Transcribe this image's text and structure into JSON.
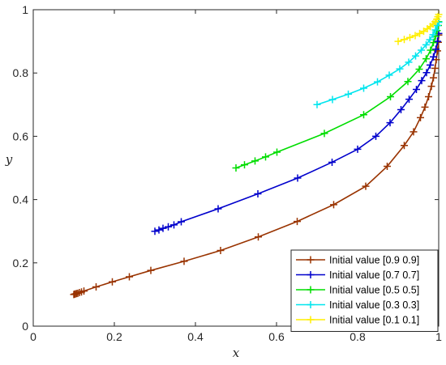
{
  "chart_data": {
    "type": "line",
    "xlabel": "x",
    "ylabel": "y",
    "xlim": [
      0,
      1
    ],
    "ylim": [
      0,
      1
    ],
    "xticks": [
      "0",
      "0.2",
      "0.4",
      "0.6",
      "0.8",
      "1"
    ],
    "yticks": [
      "0",
      "0.2",
      "0.4",
      "0.6",
      "0.8",
      "1"
    ],
    "grid": false,
    "legend_position": "bottom-right",
    "marker": "+",
    "series": [
      {
        "name": "Initial value [0.9 0.9]",
        "color": "#993300",
        "x": [
          0.1,
          0.102,
          0.104,
          0.107,
          0.11,
          0.114,
          0.119,
          0.125,
          0.155,
          0.195,
          0.237,
          0.29,
          0.372,
          0.462,
          0.555,
          0.651,
          0.741,
          0.82,
          0.873,
          0.915,
          0.938,
          0.955,
          0.966,
          0.975,
          0.982,
          0.987,
          0.991,
          0.994,
          0.997,
          0.999,
          1.0
        ],
        "y": [
          0.1,
          0.101,
          0.102,
          0.103,
          0.104,
          0.106,
          0.108,
          0.111,
          0.124,
          0.14,
          0.156,
          0.176,
          0.205,
          0.239,
          0.282,
          0.331,
          0.384,
          0.442,
          0.505,
          0.571,
          0.614,
          0.659,
          0.692,
          0.725,
          0.758,
          0.785,
          0.815,
          0.842,
          0.87,
          0.897,
          0.92
        ]
      },
      {
        "name": "Initial value [0.7 0.7]",
        "color": "#0000cc",
        "x": [
          0.3,
          0.31,
          0.32,
          0.333,
          0.347,
          0.365,
          0.456,
          0.554,
          0.652,
          0.737,
          0.8,
          0.845,
          0.88,
          0.907,
          0.927,
          0.945,
          0.958,
          0.97,
          0.979,
          0.987,
          0.993,
          0.997,
          1.0
        ],
        "y": [
          0.3,
          0.304,
          0.309,
          0.314,
          0.32,
          0.33,
          0.371,
          0.418,
          0.468,
          0.518,
          0.559,
          0.6,
          0.643,
          0.684,
          0.717,
          0.748,
          0.776,
          0.801,
          0.825,
          0.851,
          0.875,
          0.9,
          0.925
        ]
      },
      {
        "name": "Initial value [0.5 0.5]",
        "color": "#00dd00",
        "x": [
          0.5,
          0.521,
          0.547,
          0.573,
          0.601,
          0.718,
          0.815,
          0.881,
          0.924,
          0.952,
          0.969,
          0.98,
          0.987,
          0.992,
          0.996,
          0.999,
          1.0
        ],
        "y": [
          0.5,
          0.51,
          0.522,
          0.535,
          0.55,
          0.609,
          0.668,
          0.725,
          0.773,
          0.812,
          0.845,
          0.872,
          0.896,
          0.916,
          0.934,
          0.95,
          0.962
        ]
      },
      {
        "name": "Initial value [0.3 0.3]",
        "color": "#00e5ee",
        "x": [
          0.7,
          0.738,
          0.777,
          0.815,
          0.849,
          0.878,
          0.904,
          0.926,
          0.943,
          0.957,
          0.969,
          0.978,
          0.986,
          0.992,
          0.997,
          1.0
        ],
        "y": [
          0.7,
          0.716,
          0.733,
          0.752,
          0.772,
          0.793,
          0.813,
          0.834,
          0.854,
          0.872,
          0.889,
          0.905,
          0.921,
          0.936,
          0.95,
          0.96
        ]
      },
      {
        "name": "Initial value [0.1 0.1]",
        "color": "#ffee00",
        "x": [
          0.9,
          0.915,
          0.929,
          0.942,
          0.953,
          0.963,
          0.972,
          0.979,
          0.986,
          0.991,
          0.995,
          0.998,
          1.0
        ],
        "y": [
          0.9,
          0.906,
          0.912,
          0.918,
          0.925,
          0.932,
          0.94,
          0.947,
          0.955,
          0.962,
          0.97,
          0.978,
          0.985
        ]
      }
    ]
  }
}
